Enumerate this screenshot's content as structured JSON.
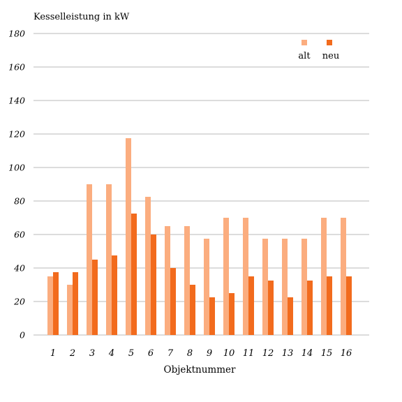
{
  "chart_data": {
    "type": "bar",
    "ylabel": "Kesselleistung in kW",
    "xlabel": "Objektnummer",
    "ylim": [
      0,
      180
    ],
    "yticks": [
      "0",
      "20",
      "40",
      "60",
      "80",
      "100",
      "120",
      "140",
      "160",
      "180"
    ],
    "grid": "horizontal",
    "legend_position": "top-right",
    "categories": [
      "1",
      "2",
      "3",
      "4",
      "5",
      "6",
      "7",
      "8",
      "9",
      "10",
      "11",
      "12",
      "13",
      "14",
      "15",
      "16"
    ],
    "series": [
      {
        "name": "alt",
        "color": "#fbad7f",
        "values": [
          35,
          30,
          90,
          90,
          117.5,
          82.5,
          65,
          65,
          57.5,
          70,
          70,
          57.5,
          57.5,
          57.5,
          70,
          70
        ]
      },
      {
        "name": "neu",
        "color": "#f26b1d",
        "values": [
          37.5,
          37.5,
          45,
          47.5,
          72.5,
          60,
          40,
          30,
          22.5,
          25,
          35,
          32.5,
          22.5,
          32.5,
          35,
          35
        ]
      }
    ]
  }
}
